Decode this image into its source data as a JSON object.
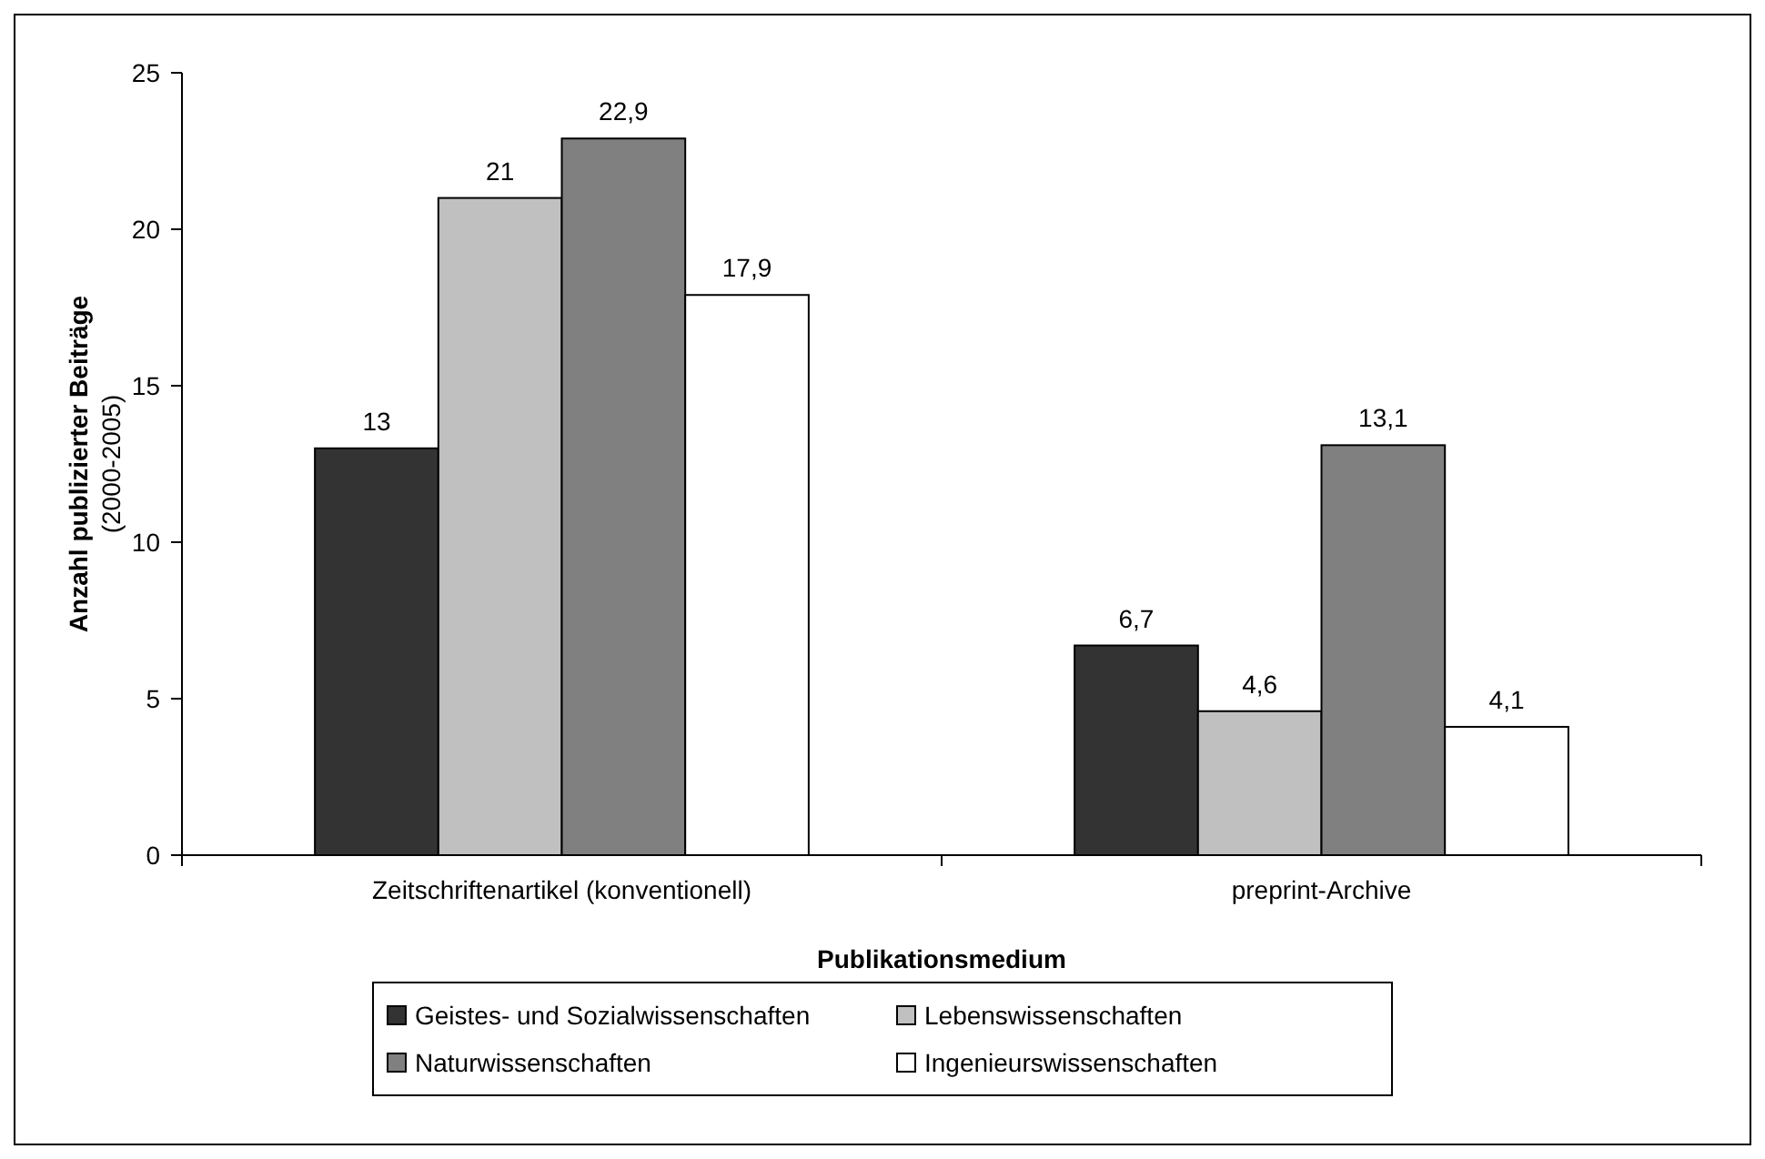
{
  "chart_data": {
    "type": "bar",
    "xlabel": "Publikationsmedium",
    "ylabel": "Anzahl publizierter Beiträge\n(2000-2005)",
    "categories": [
      "Zeitschriftenartikel (konventionell)",
      "preprint-Archive"
    ],
    "series": [
      {
        "name": "Geistes- und Sozialwissenschaften",
        "color": "#333333",
        "values": [
          13,
          6.7
        ],
        "value_labels": [
          "13",
          "6,7"
        ]
      },
      {
        "name": "Lebenswissenschaften",
        "color": "#c0c0c0",
        "values": [
          21,
          4.6
        ],
        "value_labels": [
          "21",
          "4,6"
        ]
      },
      {
        "name": "Naturwissenschaften",
        "color": "#808080",
        "values": [
          22.9,
          13.1
        ],
        "value_labels": [
          "22,9",
          "13,1"
        ]
      },
      {
        "name": "Ingenieurswissenschaften",
        "color": "#ffffff",
        "values": [
          17.9,
          4.1
        ],
        "value_labels": [
          "17,9",
          "4,1"
        ]
      }
    ],
    "ylim": [
      0,
      25
    ],
    "yticks": [
      0,
      5,
      10,
      15,
      20,
      25
    ],
    "grid": false,
    "legend": "bottom"
  }
}
